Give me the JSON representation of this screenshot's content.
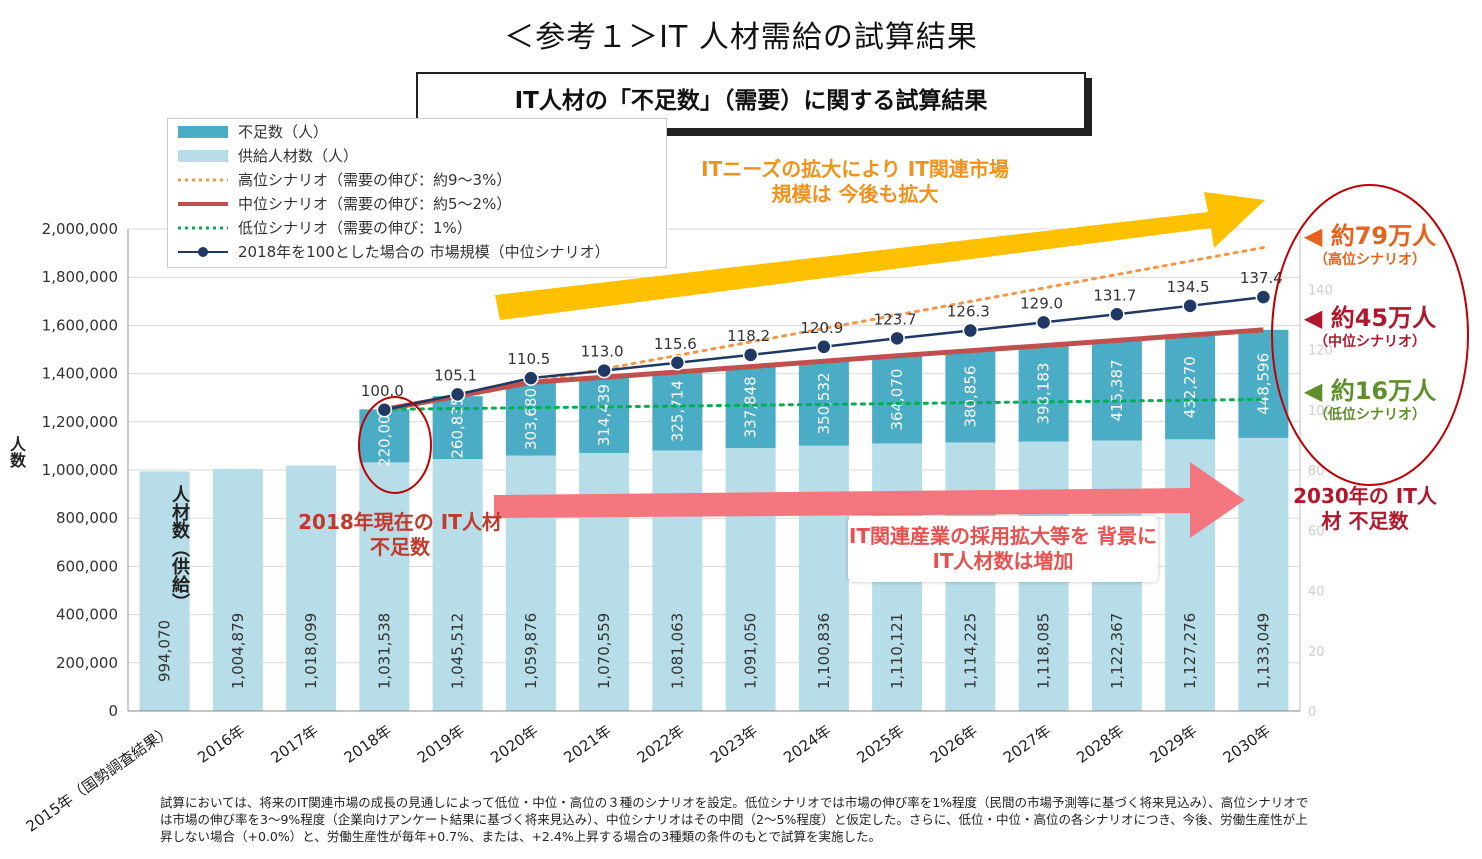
{
  "page_title": "＜参考１＞IT 人材需給の試算結果",
  "subtitle": "IT人材の「不足数」（需要）に関する試算結果",
  "colors": {
    "shortage": "#4bacc6",
    "supply": "#b7dde8",
    "high": "#f79646",
    "mid": "#c0504d",
    "low": "#00b050",
    "market": "#1f3864"
  },
  "legend": [
    "不足数（人）",
    "供給人材数（人）",
    "高位シナリオ（需要の伸び：約9～3%）",
    "中位シナリオ（需要の伸び：約5～2%）",
    "低位シナリオ（需要の伸び：1%）",
    "2018年を100とした場合の 市場規模（中位シナリオ）"
  ],
  "y_axis_title": "人数",
  "supply_label": "人材数（供給）",
  "annotations": {
    "needs": "ITニーズの拡大により IT関連市場規模は 今後も拡大",
    "shortage_2018": "2018年現在の IT人材不足数",
    "hire": "IT関連産業の採用拡大等を 背景にIT人材数は増加",
    "shortage_2030": "2030年の IT人材 不足数"
  },
  "scenarios": {
    "high": {
      "big": "約79万人",
      "small": "（高位シナリオ）"
    },
    "mid": {
      "big": "約45万人",
      "small": "（中位シナリオ）"
    },
    "low": {
      "big": "約16万人",
      "small": "（低位シナリオ）"
    }
  },
  "footnote": "試算においては、将来のIT関連市場の成長の見通しによって低位・中位・高位の３種のシナリオを設定。低位シナリオでは市場の伸び率を1%程度（民間の市場予測等に基づく将来見込み）、高位シナリオでは市場の伸び率を3～9%程度（企業向けアンケート結果に基づく将来見込み）、中位シナリオはその中間（2～5%程度）と仮定した。さらに、低位・中位・高位の各シナリオにつき、今後、労働生産性が上昇しない場合（+0.0%）と、労働生産性が毎年+0.7%、または、+2.4%上昇する場合の3種類の条件のもとで試算を実施した。",
  "chart_data": {
    "type": "bar",
    "categories": [
      "2015年（国勢調査結果）",
      "2016年",
      "2017年",
      "2018年",
      "2019年",
      "2020年",
      "2021年",
      "2022年",
      "2023年",
      "2024年",
      "2025年",
      "2026年",
      "2027年",
      "2028年",
      "2029年",
      "2030年"
    ],
    "supply": [
      994070,
      1004879,
      1018099,
      1031538,
      1045512,
      1059876,
      1070559,
      1081063,
      1091050,
      1100836,
      1110121,
      1114225,
      1118085,
      1122367,
      1127276,
      1133049
    ],
    "supply_labels": [
      "994,070",
      "1,004,879",
      "1,018,099",
      "1,031,538",
      "1,045,512",
      "1,059,876",
      "1,070,559",
      "1,081,063",
      "1,091,050",
      "1,100,836",
      "1,110,121",
      "1,114,225",
      "1,118,085",
      "1,122,367",
      "1,127,276",
      "1,133,049"
    ],
    "shortage": [
      null,
      null,
      null,
      220000,
      260835,
      303680,
      314439,
      325714,
      337848,
      350532,
      364070,
      380856,
      398183,
      415387,
      432270,
      448596
    ],
    "shortage_labels": [
      "",
      "",
      "",
      "220,000",
      "260,835",
      "303,680",
      "314,439",
      "325,714",
      "337,848",
      "350,532",
      "364,070",
      "380,856",
      "398,183",
      "415,387",
      "432,270",
      "448,596"
    ],
    "market_index": [
      null,
      null,
      null,
      100.0,
      105.1,
      110.5,
      113.0,
      115.6,
      118.2,
      120.9,
      123.7,
      126.3,
      129.0,
      131.7,
      134.5,
      137.4
    ],
    "market_labels": [
      "",
      "",
      "",
      "100.0",
      "105.1",
      "110.5",
      "113.0",
      "115.6",
      "118.2",
      "120.9",
      "123.7",
      "126.3",
      "129.0",
      "131.7",
      "134.5",
      "137.4"
    ],
    "high_demand": {
      "start": 1251538,
      "end": 1923049
    },
    "low_demand": {
      "start": 1251538,
      "end": 1293049
    },
    "ylim": [
      0,
      2000000
    ],
    "yticks": [
      "0",
      "200,000",
      "400,000",
      "600,000",
      "800,000",
      "1,000,000",
      "1,200,000",
      "1,400,000",
      "1,600,000",
      "1,800,000",
      "2,000,000"
    ],
    "y2lim": [
      0,
      160
    ],
    "y2ticks": [
      "0",
      "20",
      "40",
      "60",
      "80",
      "100",
      "120",
      "140"
    ]
  }
}
